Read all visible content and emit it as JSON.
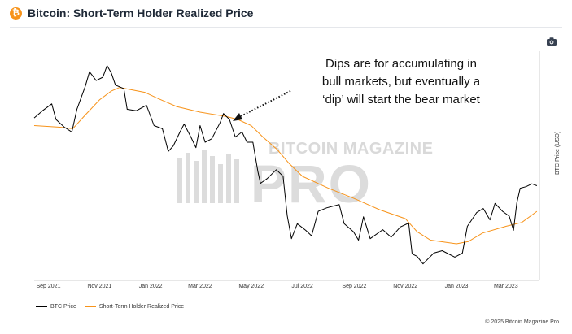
{
  "header": {
    "logo_glyph": "₿",
    "title": "Bitcoin: Short-Term Holder Realized Price"
  },
  "toolbar": {
    "camera_icon": "camera-icon"
  },
  "annotation": [
    "Dips are for accumulating in",
    "bull markets, but eventually a",
    "‘dip’ will start the bear market"
  ],
  "watermark": {
    "line1": "BITCOIN MAGAZINE",
    "line2": "PRO"
  },
  "copyright": "© 2025 Bitcoin Magazine Pro.",
  "colors": {
    "btc": "#000000",
    "sth": "#f7931a",
    "brand": "#f7931a"
  },
  "chart_data": {
    "type": "line",
    "xlabel": "",
    "ylabel": "BTC Price (USD)",
    "x_ticks": [
      "Sep 2021",
      "Nov 2021",
      "Jan 2022",
      "Mar 2022",
      "May 2022",
      "Jul 2022",
      "Sep 2022",
      "Nov 2022",
      "Jan 2023",
      "Mar 2023"
    ],
    "x_range": [
      "2021-08-15",
      "2023-04-10"
    ],
    "y_scale": "log",
    "y_range": [
      14000,
      75000
    ],
    "grid": false,
    "legend_position": "bottom-left",
    "series": [
      {
        "name": "BTC Price",
        "color": "#000000",
        "points": [
          [
            "2021-08-15",
            46000
          ],
          [
            "2021-08-25",
            48500
          ],
          [
            "2021-09-05",
            51000
          ],
          [
            "2021-09-10",
            45500
          ],
          [
            "2021-09-20",
            43000
          ],
          [
            "2021-09-29",
            41500
          ],
          [
            "2021-10-05",
            49000
          ],
          [
            "2021-10-15",
            58000
          ],
          [
            "2021-10-20",
            64500
          ],
          [
            "2021-10-28",
            60500
          ],
          [
            "2021-11-05",
            62000
          ],
          [
            "2021-11-10",
            67500
          ],
          [
            "2021-11-15",
            64000
          ],
          [
            "2021-11-20",
            58500
          ],
          [
            "2021-11-30",
            57000
          ],
          [
            "2021-12-04",
            49000
          ],
          [
            "2021-12-15",
            48500
          ],
          [
            "2021-12-27",
            50500
          ],
          [
            "2022-01-05",
            43500
          ],
          [
            "2022-01-15",
            42500
          ],
          [
            "2022-01-22",
            36000
          ],
          [
            "2022-01-28",
            37500
          ],
          [
            "2022-02-05",
            41500
          ],
          [
            "2022-02-10",
            44000
          ],
          [
            "2022-02-18",
            40000
          ],
          [
            "2022-02-24",
            37000
          ],
          [
            "2022-03-01",
            43500
          ],
          [
            "2022-03-07",
            38500
          ],
          [
            "2022-03-15",
            39500
          ],
          [
            "2022-03-25",
            44500
          ],
          [
            "2022-03-29",
            47500
          ],
          [
            "2022-04-05",
            45500
          ],
          [
            "2022-04-12",
            40000
          ],
          [
            "2022-04-20",
            41500
          ],
          [
            "2022-04-26",
            38500
          ],
          [
            "2022-05-03",
            38500
          ],
          [
            "2022-05-09",
            31000
          ],
          [
            "2022-05-12",
            28500
          ],
          [
            "2022-05-20",
            29500
          ],
          [
            "2022-05-31",
            31500
          ],
          [
            "2022-06-08",
            30000
          ],
          [
            "2022-06-13",
            22500
          ],
          [
            "2022-06-18",
            19000
          ],
          [
            "2022-06-25",
            21200
          ],
          [
            "2022-07-05",
            20200
          ],
          [
            "2022-07-12",
            19400
          ],
          [
            "2022-07-20",
            23200
          ],
          [
            "2022-07-30",
            23800
          ],
          [
            "2022-08-14",
            24400
          ],
          [
            "2022-08-20",
            21200
          ],
          [
            "2022-08-31",
            20000
          ],
          [
            "2022-09-06",
            18800
          ],
          [
            "2022-09-12",
            22300
          ],
          [
            "2022-09-20",
            19000
          ],
          [
            "2022-10-05",
            20300
          ],
          [
            "2022-10-15",
            19200
          ],
          [
            "2022-10-26",
            20700
          ],
          [
            "2022-11-05",
            21300
          ],
          [
            "2022-11-09",
            17000
          ],
          [
            "2022-11-15",
            16700
          ],
          [
            "2022-11-22",
            15800
          ],
          [
            "2022-12-05",
            17100
          ],
          [
            "2022-12-15",
            17400
          ],
          [
            "2022-12-30",
            16600
          ],
          [
            "2023-01-08",
            17100
          ],
          [
            "2023-01-14",
            20800
          ],
          [
            "2023-01-25",
            23000
          ],
          [
            "2023-02-02",
            23700
          ],
          [
            "2023-02-10",
            21800
          ],
          [
            "2023-02-16",
            24600
          ],
          [
            "2023-02-25",
            23200
          ],
          [
            "2023-03-05",
            22400
          ],
          [
            "2023-03-10",
            20200
          ],
          [
            "2023-03-14",
            24700
          ],
          [
            "2023-03-18",
            27500
          ],
          [
            "2023-03-25",
            27800
          ],
          [
            "2023-04-01",
            28400
          ],
          [
            "2023-04-07",
            28000
          ]
        ]
      },
      {
        "name": "Short-Term Holder Realized Price",
        "color": "#f7931a",
        "points": [
          [
            "2021-08-15",
            43500
          ],
          [
            "2021-09-15",
            43000
          ],
          [
            "2021-09-30",
            42500
          ],
          [
            "2021-10-15",
            47000
          ],
          [
            "2021-11-01",
            52500
          ],
          [
            "2021-11-15",
            56000
          ],
          [
            "2021-11-25",
            57500
          ],
          [
            "2021-12-10",
            56500
          ],
          [
            "2021-12-25",
            55500
          ],
          [
            "2022-01-10",
            53000
          ],
          [
            "2022-02-01",
            50000
          ],
          [
            "2022-03-01",
            48000
          ],
          [
            "2022-04-01",
            46500
          ],
          [
            "2022-04-15",
            45500
          ],
          [
            "2022-05-01",
            43500
          ],
          [
            "2022-05-15",
            40000
          ],
          [
            "2022-06-01",
            36500
          ],
          [
            "2022-06-15",
            33000
          ],
          [
            "2022-07-01",
            30000
          ],
          [
            "2022-08-01",
            27500
          ],
          [
            "2022-09-01",
            25500
          ],
          [
            "2022-10-01",
            23500
          ],
          [
            "2022-11-01",
            22000
          ],
          [
            "2022-11-15",
            20000
          ],
          [
            "2022-12-01",
            18800
          ],
          [
            "2023-01-01",
            18300
          ],
          [
            "2023-01-15",
            18600
          ],
          [
            "2023-02-01",
            19800
          ],
          [
            "2023-03-01",
            20800
          ],
          [
            "2023-03-20",
            21400
          ],
          [
            "2023-04-07",
            23200
          ]
        ]
      }
    ]
  }
}
